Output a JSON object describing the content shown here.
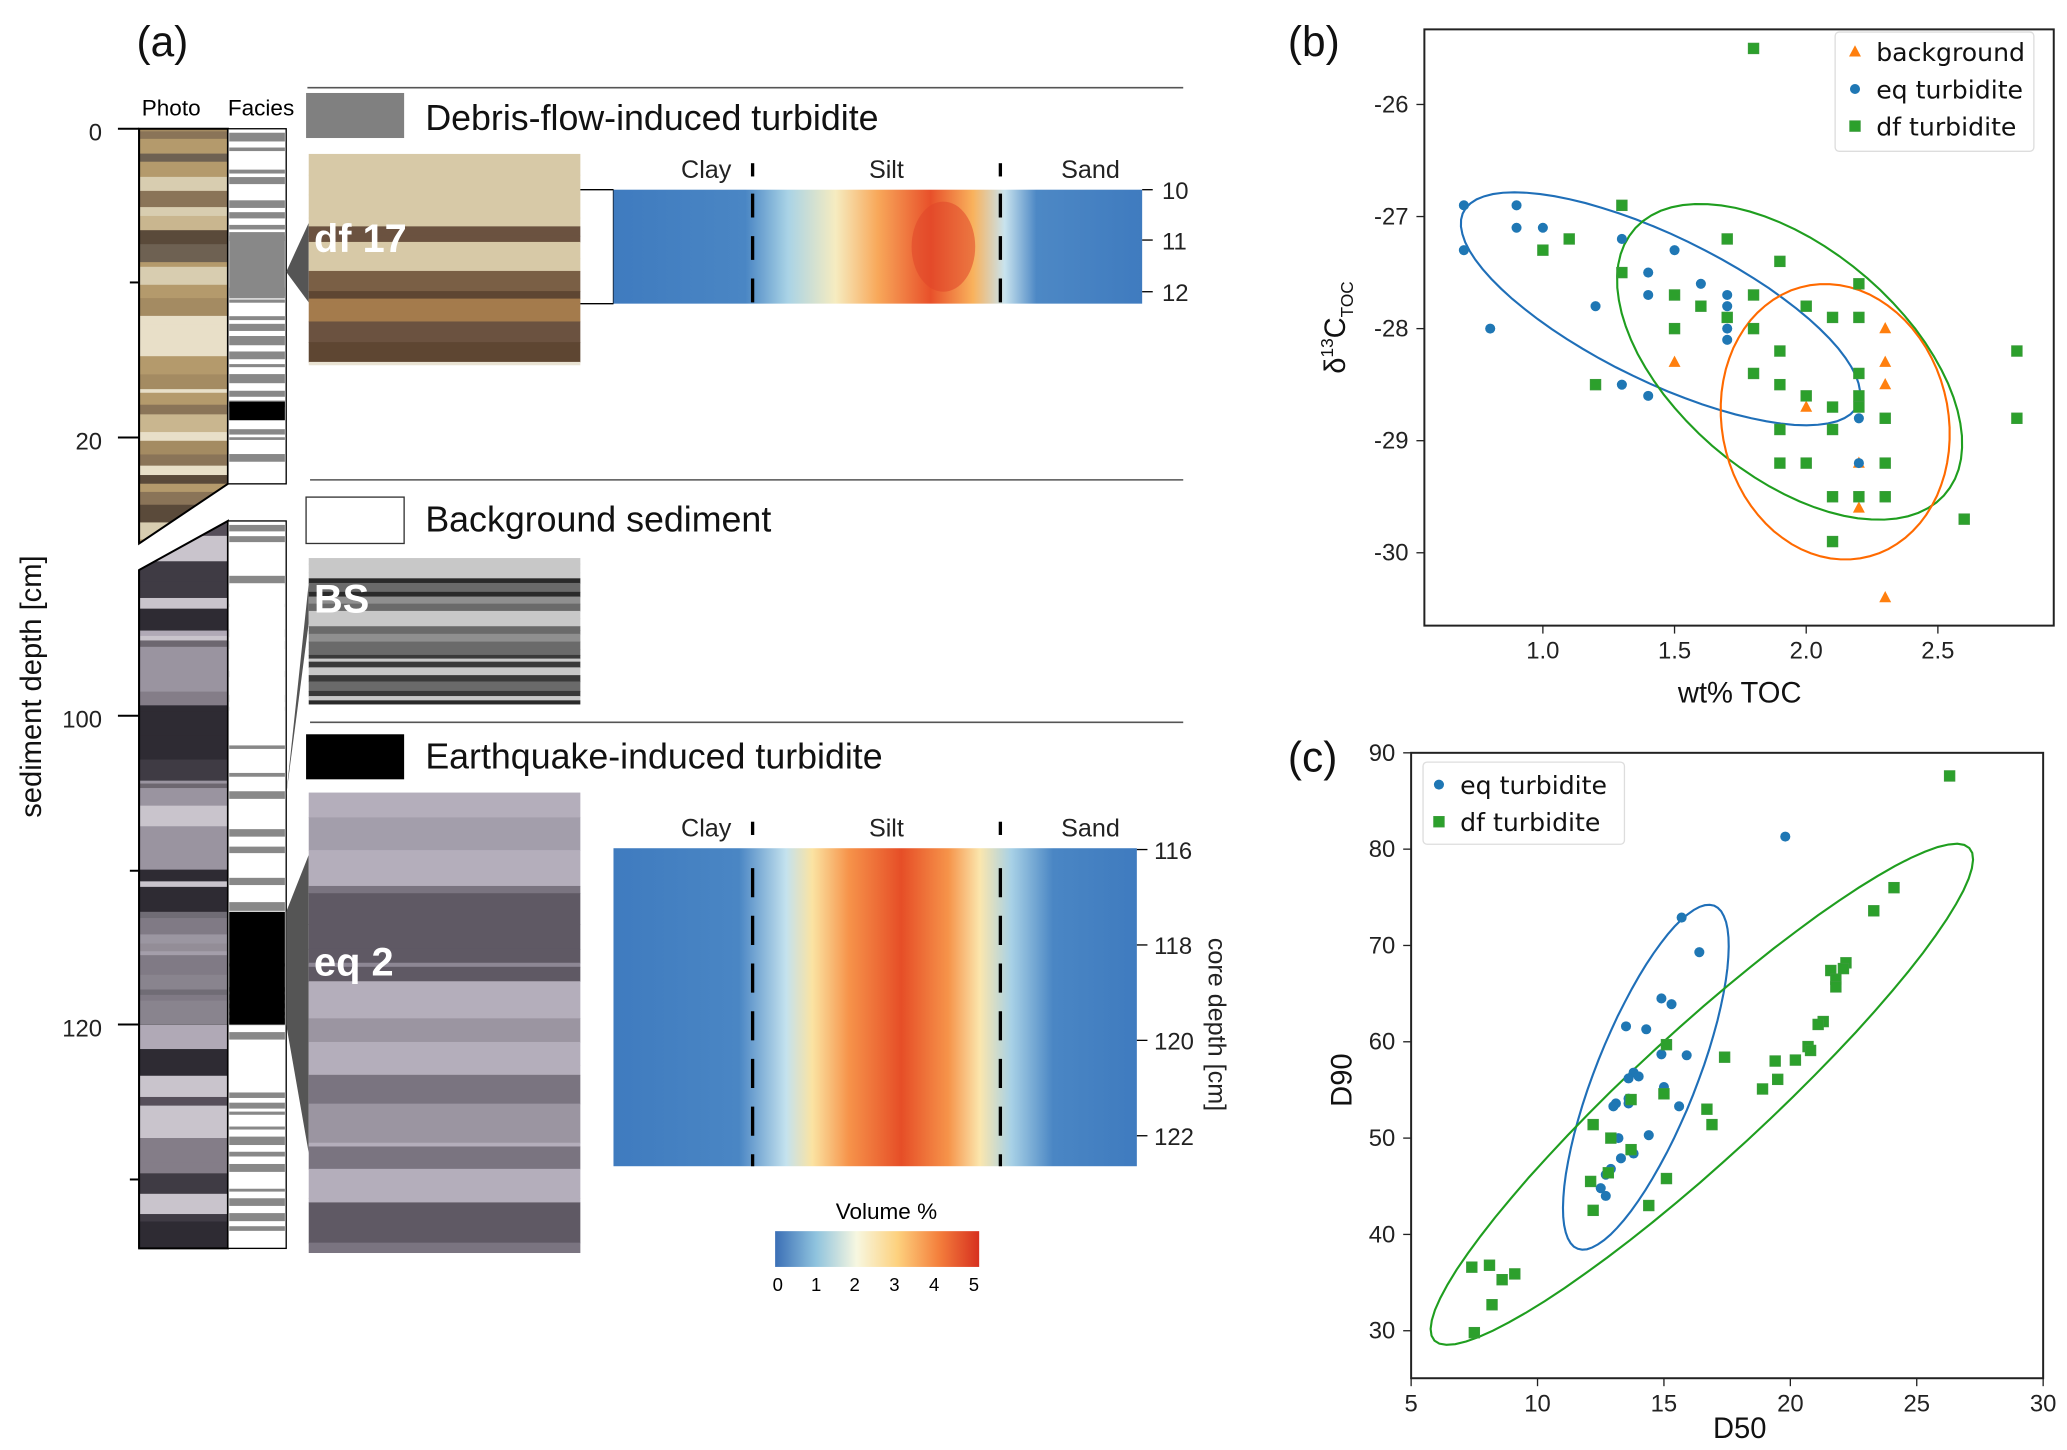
{
  "panel_a": {
    "label": "(a)",
    "col_photo": "Photo",
    "col_facies": "Facies",
    "depth_axis_label": "sediment depth [cm]",
    "depth_ticks": [
      "0",
      "20",
      "100",
      "120"
    ],
    "legend": {
      "df": "Debris-flow-induced turbidite",
      "bs": "Background sediment",
      "eq": "Earthquake-induced turbidite"
    },
    "facies_colors": {
      "df": "#808080",
      "bs": "#ffffff",
      "eq": "#000000"
    },
    "photos": {
      "df": "df 17",
      "bs": "BS",
      "eq": "eq 2"
    },
    "grain_classes": [
      "Clay",
      "Silt",
      "Sand"
    ],
    "heatmap_top_ticks": [
      "10",
      "11",
      "12"
    ],
    "heatmap_bottom_ticks": [
      "116",
      "118",
      "120",
      "122"
    ],
    "core_depth_label": "core depth [cm]",
    "colorbar": {
      "title": "Volume %",
      "ticks": [
        "0",
        "1",
        "2",
        "3",
        "4",
        "5"
      ],
      "colormap": [
        "#3b6fb6",
        "#8fc3de",
        "#f7f7e0",
        "#fdd17e",
        "#f4803d",
        "#d7301f"
      ]
    }
  },
  "chart_data": [
    {
      "type": "scatter",
      "panel_label": "(b)",
      "xlabel": "wt% TOC",
      "ylabel": {
        "prefix": "δ",
        "sup": "13",
        "main": "C",
        "sub": "TOC"
      },
      "xlim": [
        0.55,
        2.94
      ],
      "ylim": [
        -30.65,
        -25.33
      ],
      "xticks": [
        "1.0",
        "1.5",
        "2.0",
        "2.5"
      ],
      "yticks": [
        "-26",
        "-27",
        "-28",
        "-29",
        "-30"
      ],
      "legend": "top-right",
      "grid": false,
      "series": [
        {
          "name": "background",
          "marker": "triangle",
          "color": "#ff7f0e",
          "points": [
            [
              1.5,
              -28.3
            ],
            [
              2.0,
              -28.7
            ],
            [
              2.3,
              -28.0
            ],
            [
              2.3,
              -28.3
            ],
            [
              2.3,
              -28.5
            ],
            [
              2.2,
              -29.2
            ],
            [
              2.2,
              -29.6
            ],
            [
              2.3,
              -30.4
            ]
          ]
        },
        {
          "name": "eq turbidite",
          "marker": "circle",
          "color": "#1f77b4",
          "points": [
            [
              0.7,
              -26.9
            ],
            [
              0.7,
              -27.3
            ],
            [
              0.9,
              -26.9
            ],
            [
              0.9,
              -27.1
            ],
            [
              1.0,
              -27.1
            ],
            [
              0.8,
              -28.0
            ],
            [
              1.2,
              -27.8
            ],
            [
              1.3,
              -27.2
            ],
            [
              1.3,
              -28.5
            ],
            [
              1.4,
              -27.5
            ],
            [
              1.4,
              -27.7
            ],
            [
              1.4,
              -28.6
            ],
            [
              1.5,
              -27.3
            ],
            [
              1.6,
              -27.6
            ],
            [
              1.7,
              -27.7
            ],
            [
              1.7,
              -27.8
            ],
            [
              1.7,
              -28.0
            ],
            [
              1.7,
              -28.1
            ],
            [
              2.2,
              -28.8
            ],
            [
              2.2,
              -29.2
            ]
          ]
        },
        {
          "name": "df turbidite",
          "marker": "square",
          "color": "#2ca02c",
          "points": [
            [
              1.8,
              -25.5
            ],
            [
              1.3,
              -26.9
            ],
            [
              1.1,
              -27.2
            ],
            [
              1.0,
              -27.3
            ],
            [
              1.7,
              -27.2
            ],
            [
              1.9,
              -27.4
            ],
            [
              1.3,
              -27.5
            ],
            [
              1.5,
              -27.7
            ],
            [
              1.8,
              -27.7
            ],
            [
              1.6,
              -27.8
            ],
            [
              2.0,
              -27.8
            ],
            [
              2.2,
              -27.6
            ],
            [
              1.7,
              -27.9
            ],
            [
              2.1,
              -27.9
            ],
            [
              2.2,
              -27.9
            ],
            [
              1.5,
              -28.0
            ],
            [
              1.8,
              -28.0
            ],
            [
              1.9,
              -28.2
            ],
            [
              2.2,
              -28.4
            ],
            [
              2.8,
              -28.2
            ],
            [
              1.2,
              -28.5
            ],
            [
              1.8,
              -28.4
            ],
            [
              1.9,
              -28.5
            ],
            [
              2.0,
              -28.6
            ],
            [
              2.2,
              -28.6
            ],
            [
              2.1,
              -28.7
            ],
            [
              2.2,
              -28.7
            ],
            [
              2.3,
              -28.8
            ],
            [
              2.8,
              -28.8
            ],
            [
              1.9,
              -28.9
            ],
            [
              2.1,
              -28.9
            ],
            [
              1.9,
              -29.2
            ],
            [
              2.0,
              -29.2
            ],
            [
              2.3,
              -29.2
            ],
            [
              2.1,
              -29.5
            ],
            [
              2.2,
              -29.5
            ],
            [
              2.3,
              -29.5
            ],
            [
              2.6,
              -29.7
            ],
            [
              2.1,
              -29.9
            ]
          ]
        }
      ]
    },
    {
      "type": "scatter",
      "panel_label": "(c)",
      "xlabel": "D50",
      "ylabel": "D90",
      "xlim": [
        5,
        30
      ],
      "ylim": [
        25.07,
        90
      ],
      "xticks": [
        "5",
        "10",
        "15",
        "20",
        "25",
        "30"
      ],
      "yticks": [
        "30",
        "40",
        "50",
        "60",
        "70",
        "80",
        "90"
      ],
      "legend": "top-left",
      "grid": false,
      "series": [
        {
          "name": "eq turbidite",
          "marker": "circle",
          "color": "#1f77b4",
          "points": [
            [
              19.8,
              81.3
            ],
            [
              15.7,
              72.9
            ],
            [
              16.4,
              69.3
            ],
            [
              14.9,
              64.5
            ],
            [
              15.3,
              63.9
            ],
            [
              13.5,
              61.6
            ],
            [
              14.3,
              61.3
            ],
            [
              14.9,
              58.7
            ],
            [
              15.9,
              58.6
            ],
            [
              13.8,
              56.8
            ],
            [
              13.6,
              56.2
            ],
            [
              14.0,
              56.4
            ],
            [
              15.0,
              55.3
            ],
            [
              13.6,
              54.1
            ],
            [
              13.6,
              53.6
            ],
            [
              13.1,
              53.6
            ],
            [
              13.0,
              53.3
            ],
            [
              15.6,
              53.3
            ],
            [
              13.2,
              50.0
            ],
            [
              14.4,
              50.3
            ],
            [
              13.8,
              48.4
            ],
            [
              13.3,
              47.9
            ],
            [
              12.9,
              46.8
            ],
            [
              12.7,
              46.2
            ],
            [
              12.5,
              44.8
            ],
            [
              12.7,
              44.0
            ]
          ]
        },
        {
          "name": "df turbidite",
          "marker": "square",
          "color": "#2ca02c",
          "points": [
            [
              26.3,
              87.6
            ],
            [
              24.1,
              76.0
            ],
            [
              23.3,
              73.6
            ],
            [
              22.2,
              68.2
            ],
            [
              22.1,
              67.6
            ],
            [
              21.6,
              67.4
            ],
            [
              21.8,
              66.5
            ],
            [
              21.8,
              65.7
            ],
            [
              21.3,
              62.1
            ],
            [
              21.1,
              61.8
            ],
            [
              20.7,
              59.5
            ],
            [
              20.8,
              59.1
            ],
            [
              20.2,
              58.1
            ],
            [
              19.4,
              58.0
            ],
            [
              19.5,
              56.1
            ],
            [
              18.9,
              55.1
            ],
            [
              17.4,
              58.4
            ],
            [
              16.7,
              53.0
            ],
            [
              16.9,
              51.4
            ],
            [
              15.1,
              59.7
            ],
            [
              15.0,
              54.6
            ],
            [
              13.7,
              54.0
            ],
            [
              12.2,
              51.4
            ],
            [
              12.9,
              50.0
            ],
            [
              13.7,
              48.8
            ],
            [
              12.8,
              46.4
            ],
            [
              12.1,
              45.5
            ],
            [
              15.1,
              45.8
            ],
            [
              12.2,
              42.5
            ],
            [
              14.4,
              43.0
            ],
            [
              7.4,
              36.6
            ],
            [
              8.1,
              36.8
            ],
            [
              8.6,
              35.3
            ],
            [
              9.1,
              35.9
            ],
            [
              8.2,
              32.7
            ],
            [
              7.5,
              29.8
            ]
          ]
        }
      ]
    }
  ]
}
